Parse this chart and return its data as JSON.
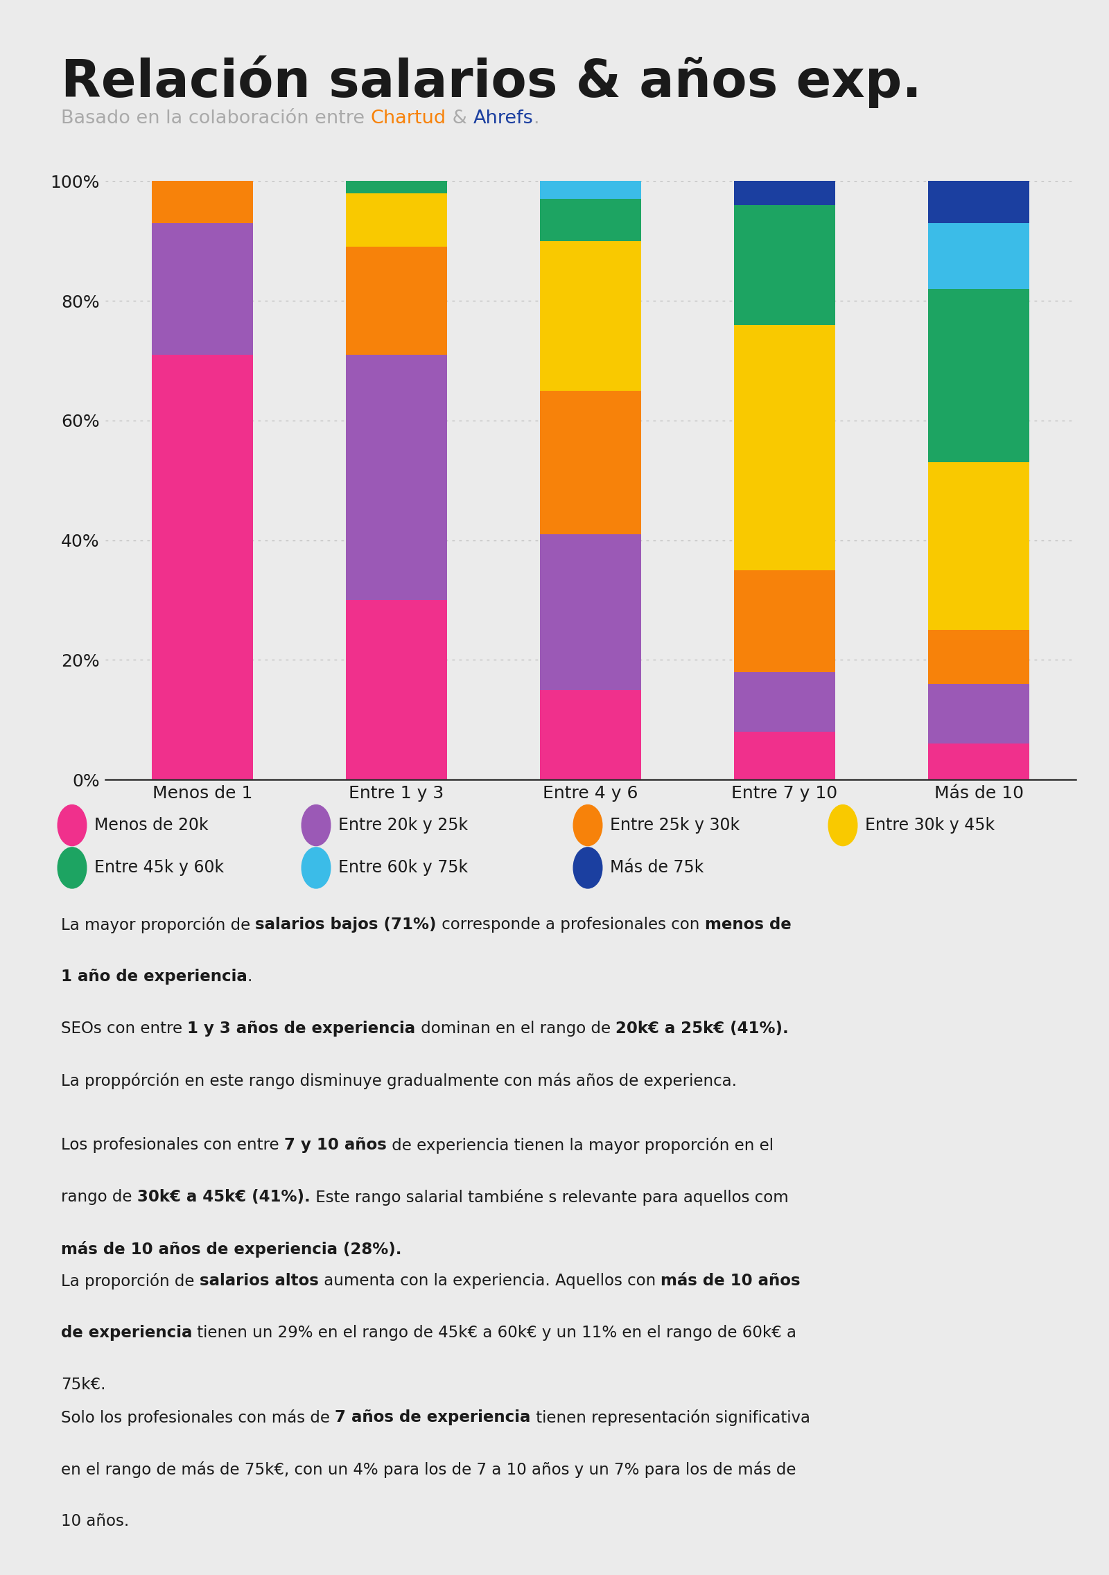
{
  "title": "Relación salarios & años exp.",
  "categories": [
    "Menos de 1",
    "Entre 1 y 3",
    "Entre 4 y 6",
    "Entre 7 y 10",
    "Más de 10"
  ],
  "salary_ranges": [
    "Menos de 20k",
    "Entre 20k y 25k",
    "Entre 25k y 30k",
    "Entre 30k y 45k",
    "Entre 45k y 60k",
    "Entre 60k y 75k",
    "Más de 75k"
  ],
  "colors": [
    "#F0308C",
    "#9B59B6",
    "#F7820A",
    "#F9C900",
    "#1DA462",
    "#3BBCE8",
    "#1B3FA0"
  ],
  "data": [
    [
      71,
      22,
      7,
      0,
      0,
      0,
      0
    ],
    [
      30,
      41,
      18,
      9,
      2,
      0,
      0
    ],
    [
      15,
      26,
      24,
      25,
      7,
      3,
      0
    ],
    [
      8,
      10,
      17,
      41,
      20,
      0,
      4
    ],
    [
      6,
      10,
      9,
      28,
      29,
      11,
      7
    ]
  ],
  "background_color": "#EBEBEB",
  "text_color": "#1A1A1A",
  "subtitle_color": "#AAAAAA",
  "highlight_chartud": "#F7820A",
  "highlight_ahrefs": "#1B3FA0",
  "ytick_values": [
    0,
    20,
    40,
    60,
    80,
    100
  ],
  "ylabel_ticks": [
    "0%",
    "20%",
    "40%",
    "60%",
    "80%",
    "100%"
  ],
  "bar_width": 0.52,
  "legend_row1": [
    "Menos de 20k",
    "Entre 20k y 25k",
    "Entre 25k y 30k",
    "Entre 30k y 45k"
  ],
  "legend_row2": [
    "Entre 45k y 60k",
    "Entre 60k y 75k",
    "Más de 75k"
  ],
  "paragraphs": [
    {
      "lines": [
        [
          [
            "La mayor proporción de ",
            false
          ],
          [
            "salarios bajos (71%)",
            true
          ],
          [
            " corresponde a profesionales con ",
            false
          ],
          [
            "menos de",
            true
          ]
        ],
        [
          [
            "1 año de experiencia",
            true
          ],
          [
            ".",
            false
          ]
        ]
      ]
    },
    {
      "lines": [
        [
          [
            "SEOs con entre ",
            false
          ],
          [
            "1 y 3 años de experiencia",
            true
          ],
          [
            " dominan en el rango de ",
            false
          ],
          [
            "20k€ a 25k€ (41%).",
            true
          ]
        ],
        [
          [
            "La proppórción en este rango disminuye gradualmente con más años de experienca.",
            false
          ]
        ]
      ]
    },
    {
      "lines": [
        [
          [
            "Los profesionales con entre ",
            false
          ],
          [
            "7 y 10 años",
            true
          ],
          [
            " de experiencia tienen la mayor proporción en el",
            false
          ]
        ],
        [
          [
            "rango de ",
            false
          ],
          [
            "30k€ a 45k€ (41%).",
            true
          ],
          [
            " Este rango salarial tambiéne s relevante para aquellos com",
            false
          ]
        ],
        [
          [
            "más de 10 años de experiencia (28%).",
            true
          ]
        ]
      ]
    },
    {
      "lines": [
        [
          [
            "La proporción de ",
            false
          ],
          [
            "salarios altos",
            true
          ],
          [
            " aumenta con la experiencia. Aquellos con ",
            false
          ],
          [
            "más de 10 años",
            true
          ]
        ],
        [
          [
            "de experiencia",
            true
          ],
          [
            " tienen un 29% en el rango de 45k€ a 60k€ y un 11% en el rango de 60k€ a",
            false
          ]
        ],
        [
          [
            "75k€.",
            false
          ]
        ]
      ]
    },
    {
      "lines": [
        [
          [
            "Solo los profesionales con más de ",
            false
          ],
          [
            "7 años de experiencia",
            true
          ],
          [
            " tienen representación significativa",
            false
          ]
        ],
        [
          [
            "en el rango de más de 75k€, con un 4% para los de 7 a 10 años y un 7% para los de más de",
            false
          ]
        ],
        [
          [
            "10 años.",
            false
          ]
        ]
      ]
    }
  ]
}
